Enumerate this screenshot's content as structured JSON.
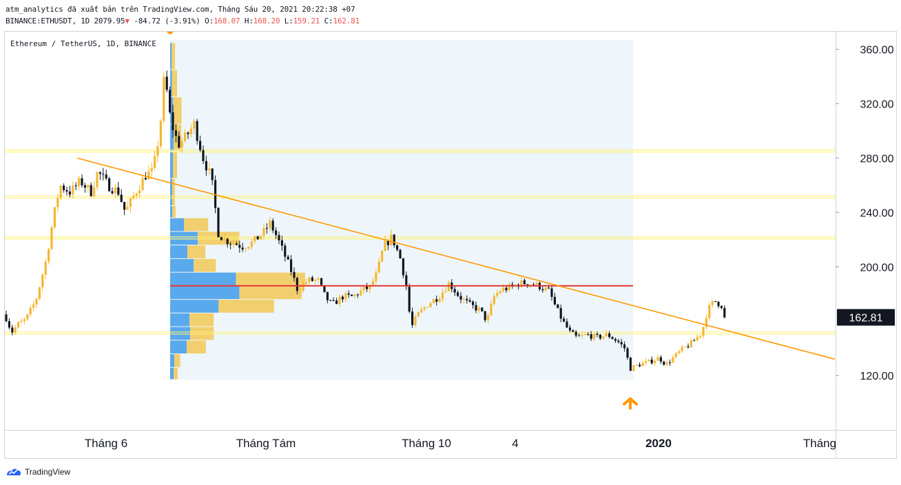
{
  "header": {
    "line1": "atm_analytics đã xuất bản trên TradingView.com, Tháng Sáu 20, 2021 20:22:38 +07",
    "symbol": "BINANCE:ETHUSDT, 1D 2079.95",
    "change_arrow": "▼",
    "change": "-84.72 (-3.91%)",
    "o_label": "O:",
    "o_value": "168.07",
    "h_label": "H:",
    "h_value": "168.20",
    "l_label": "L:",
    "l_value": "159.21",
    "c_label": "C:",
    "c_value": "162.81"
  },
  "footer": {
    "brand": "TradingView",
    "logo_icon": "tradingview-logo-icon"
  },
  "colors": {
    "up": "#f5b731",
    "down": "#131722",
    "zone": "#fff176",
    "trend": "#ff9800",
    "poc": "#e53935",
    "range_bg": "#eef6fb",
    "arrow": "#ff9800",
    "vp_up": "#5aa9ec",
    "vp_down": "#f2cf6e",
    "last_bg": "#131722"
  },
  "chart_data": {
    "type": "candlestick",
    "title": "Ethereum / TetherUS, 1D, BINANCE",
    "xlabel": "",
    "ylabel": "",
    "ylim": [
      80,
      373
    ],
    "x_tick_labels": [
      "Tháng 6",
      "Tháng Tám",
      "Tháng 10",
      "4",
      "2020",
      "Tháng"
    ],
    "y_tick_labels": [
      "360.00",
      "320.00",
      "280.00",
      "240.00",
      "200.00",
      "120.00"
    ],
    "y_ticks": [
      360,
      320,
      280,
      240,
      200,
      120
    ],
    "last_price": 162.81,
    "last_price_label": "162.81",
    "grid": false,
    "price_path": [
      [
        0,
        165
      ],
      [
        10,
        152
      ],
      [
        20,
        158
      ],
      [
        30,
        161
      ],
      [
        45,
        175
      ],
      [
        60,
        205
      ],
      [
        70,
        235
      ],
      [
        80,
        260
      ],
      [
        95,
        255
      ],
      [
        110,
        263
      ],
      [
        125,
        255
      ],
      [
        135,
        270
      ],
      [
        150,
        260
      ],
      [
        165,
        255
      ],
      [
        175,
        240
      ],
      [
        190,
        255
      ],
      [
        205,
        268
      ],
      [
        215,
        270
      ],
      [
        225,
        300
      ],
      [
        230,
        330
      ],
      [
        232,
        345
      ],
      [
        238,
        315
      ],
      [
        245,
        300
      ],
      [
        252,
        290
      ],
      [
        262,
        295
      ],
      [
        275,
        305
      ],
      [
        288,
        280
      ],
      [
        300,
        265
      ],
      [
        310,
        225
      ],
      [
        318,
        220
      ],
      [
        330,
        218
      ],
      [
        345,
        215
      ],
      [
        360,
        218
      ],
      [
        375,
        225
      ],
      [
        385,
        232
      ],
      [
        395,
        222
      ],
      [
        405,
        210
      ],
      [
        415,
        198
      ],
      [
        425,
        183
      ],
      [
        440,
        190
      ],
      [
        455,
        190
      ],
      [
        465,
        178
      ],
      [
        475,
        172
      ],
      [
        490,
        178
      ],
      [
        505,
        178
      ],
      [
        520,
        183
      ],
      [
        530,
        185
      ],
      [
        540,
        195
      ],
      [
        550,
        215
      ],
      [
        562,
        222
      ],
      [
        575,
        205
      ],
      [
        583,
        185
      ],
      [
        590,
        155
      ],
      [
        600,
        165
      ],
      [
        615,
        173
      ],
      [
        630,
        178
      ],
      [
        645,
        188
      ],
      [
        660,
        178
      ],
      [
        675,
        172
      ],
      [
        690,
        168
      ],
      [
        700,
        160
      ],
      [
        710,
        178
      ],
      [
        720,
        183
      ],
      [
        735,
        185
      ],
      [
        748,
        188
      ],
      [
        760,
        188
      ],
      [
        775,
        186
      ],
      [
        790,
        182
      ],
      [
        800,
        170
      ],
      [
        810,
        160
      ],
      [
        820,
        152
      ],
      [
        830,
        148
      ],
      [
        845,
        150
      ],
      [
        860,
        148
      ],
      [
        875,
        150
      ],
      [
        890,
        145
      ],
      [
        900,
        140
      ],
      [
        908,
        125
      ],
      [
        920,
        128
      ],
      [
        935,
        130
      ],
      [
        950,
        133
      ],
      [
        960,
        128
      ],
      [
        970,
        133
      ],
      [
        985,
        140
      ],
      [
        995,
        143
      ],
      [
        1005,
        148
      ],
      [
        1012,
        152
      ],
      [
        1020,
        168
      ],
      [
        1030,
        175
      ],
      [
        1040,
        172
      ],
      [
        1048,
        165
      ]
    ],
    "horizontal_zones": [
      285,
      251,
      221,
      151
    ],
    "trendline": [
      [
        105,
        280
      ],
      [
        1205,
        132
      ]
    ],
    "poc_line": {
      "price": 186,
      "from_x": 240,
      "to_x": 912
    },
    "volume_profile": {
      "range_x": [
        240,
        912
      ],
      "range_prices": [
        117,
        367
      ],
      "rows": [
        {
          "lo": 345,
          "hi": 365,
          "up": 0.4,
          "down": 1.0
        },
        {
          "lo": 325,
          "hi": 345,
          "up": 0.5,
          "down": 1.5
        },
        {
          "lo": 305,
          "hi": 325,
          "up": 0.8,
          "down": 2.5
        },
        {
          "lo": 285,
          "hi": 305,
          "up": 1.0,
          "down": 2.2
        },
        {
          "lo": 265,
          "hi": 285,
          "up": 0.8,
          "down": 1.2
        },
        {
          "lo": 245,
          "hi": 265,
          "up": 0.6,
          "down": 0.8
        },
        {
          "lo": 236,
          "hi": 245,
          "up": 0.6,
          "down": 1.0
        },
        {
          "lo": 226,
          "hi": 236,
          "up": 4.0,
          "down": 7.0
        },
        {
          "lo": 216,
          "hi": 226,
          "up": 8.0,
          "down": 12.0
        },
        {
          "lo": 206,
          "hi": 216,
          "up": 5.0,
          "down": 5.2
        },
        {
          "lo": 196,
          "hi": 206,
          "up": 6.8,
          "down": 6.4
        },
        {
          "lo": 186,
          "hi": 196,
          "up": 19.0,
          "down": 20.0
        },
        {
          "lo": 176,
          "hi": 186,
          "up": 20.0,
          "down": 18.0
        },
        {
          "lo": 166,
          "hi": 176,
          "up": 14.0,
          "down": 16.0
        },
        {
          "lo": 156,
          "hi": 166,
          "up": 5.6,
          "down": 7.0
        },
        {
          "lo": 146,
          "hi": 156,
          "up": 5.8,
          "down": 6.8
        },
        {
          "lo": 136,
          "hi": 146,
          "up": 4.8,
          "down": 5.5
        },
        {
          "lo": 126,
          "hi": 136,
          "up": 1.2,
          "down": 1.7
        },
        {
          "lo": 117,
          "hi": 126,
          "up": 1.0,
          "down": 1.2
        }
      ]
    },
    "markers": [
      {
        "type": "arrow-down",
        "at": [
          240,
          372
        ]
      },
      {
        "type": "arrow-up",
        "at": [
          908,
          103
        ]
      }
    ]
  }
}
